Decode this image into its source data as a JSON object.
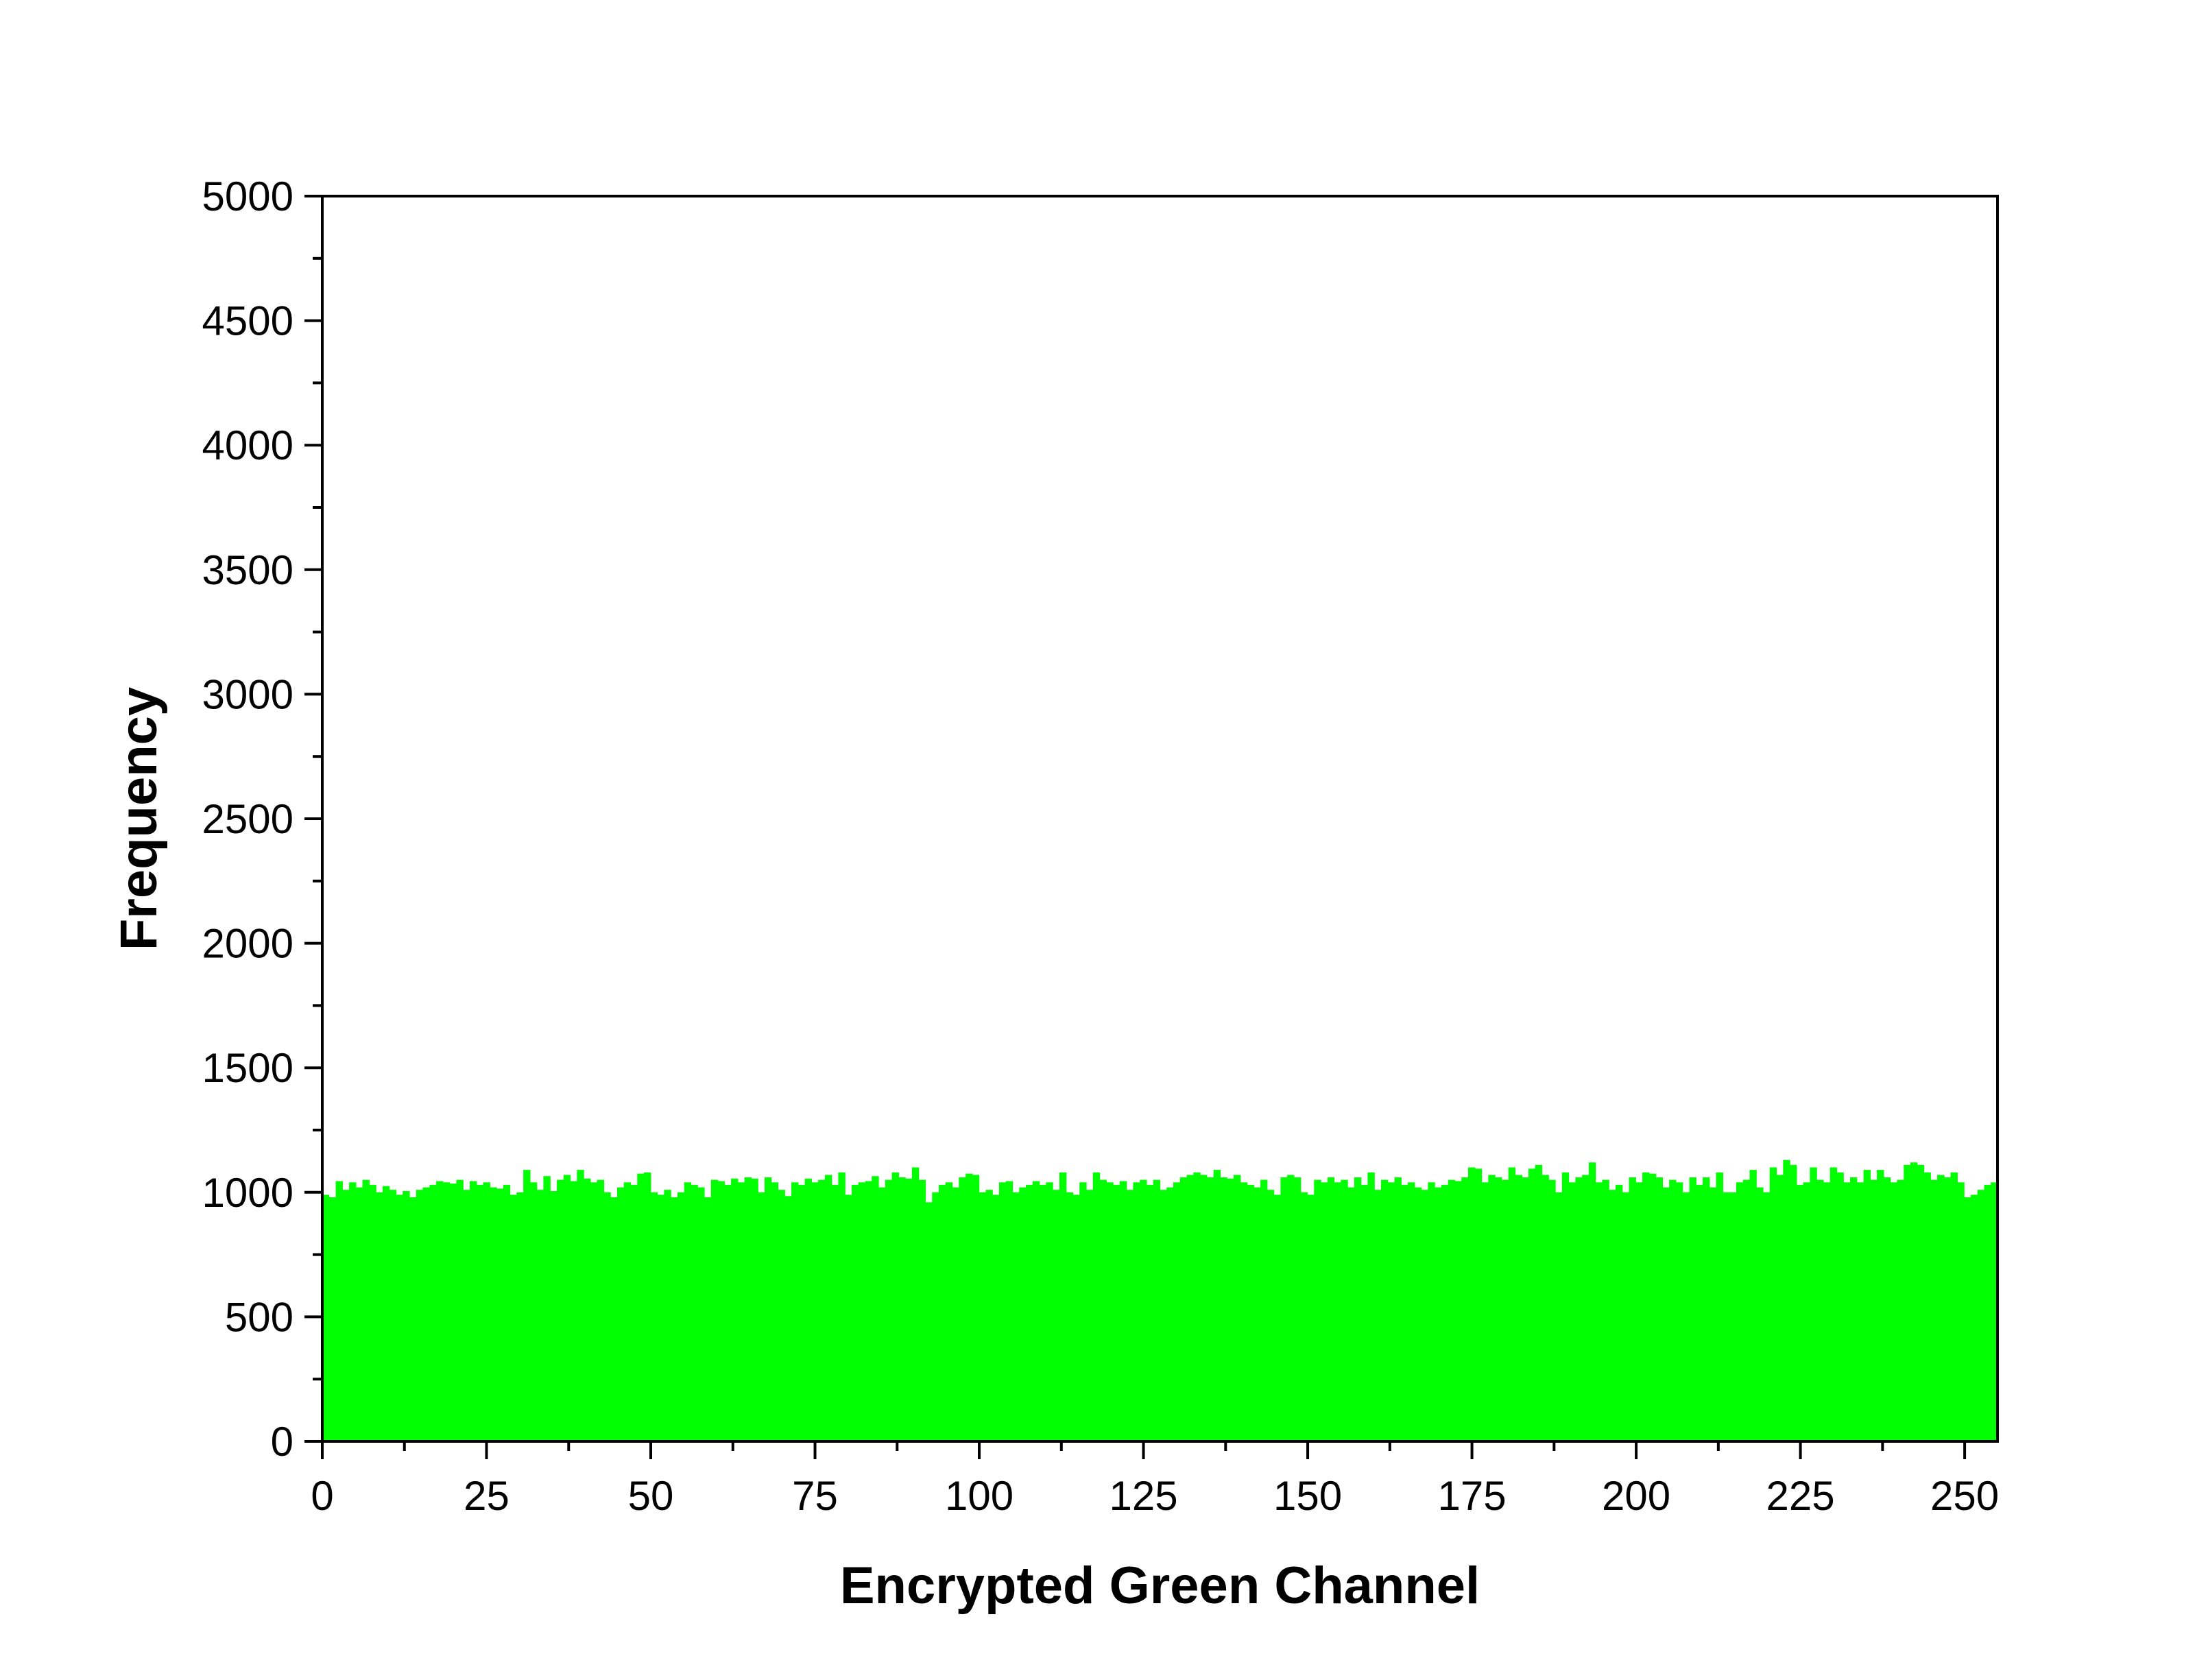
{
  "chart_data": {
    "type": "bar",
    "title": "",
    "xlabel": "Encrypted Green Channel",
    "ylabel": "Frequency",
    "xlim": [
      0,
      255
    ],
    "ylim": [
      0,
      5000
    ],
    "x_ticks": [
      "0",
      "25",
      "50",
      "75",
      "100",
      "125",
      "150",
      "175",
      "200",
      "225",
      "250"
    ],
    "y_ticks": [
      "0",
      "500",
      "1000",
      "1500",
      "2000",
      "2500",
      "3000",
      "3500",
      "4000",
      "4500",
      "5000"
    ],
    "grid": false,
    "legend": "none",
    "bar_color": "#00ff00",
    "series": [
      {
        "values": [
          990,
          980,
          1045,
          1010,
          1040,
          1020,
          1050,
          1030,
          1000,
          1025,
          1010,
          990,
          1005,
          980,
          1010,
          1020,
          1030,
          1045,
          1040,
          1035,
          1050,
          1010,
          1045,
          1030,
          1040,
          1020,
          1015,
          1030,
          990,
          1000,
          1090,
          1040,
          1010,
          1065,
          1005,
          1050,
          1070,
          1045,
          1090,
          1055,
          1040,
          1050,
          1000,
          980,
          1020,
          1040,
          1030,
          1075,
          1080,
          1000,
          990,
          1010,
          980,
          1000,
          1040,
          1030,
          1020,
          980,
          1050,
          1045,
          1030,
          1055,
          1040,
          1060,
          1055,
          1000,
          1060,
          1040,
          1010,
          985,
          1040,
          1030,
          1055,
          1040,
          1050,
          1070,
          1030,
          1080,
          990,
          1030,
          1040,
          1045,
          1065,
          1020,
          1050,
          1080,
          1060,
          1055,
          1100,
          1050,
          960,
          1000,
          1030,
          1040,
          1020,
          1060,
          1075,
          1070,
          1000,
          1010,
          990,
          1040,
          1045,
          1000,
          1020,
          1030,
          1045,
          1030,
          1040,
          1010,
          1080,
          1000,
          990,
          1040,
          1010,
          1080,
          1050,
          1040,
          1030,
          1045,
          1010,
          1040,
          1050,
          1030,
          1050,
          1010,
          1020,
          1040,
          1060,
          1070,
          1080,
          1070,
          1060,
          1090,
          1060,
          1055,
          1070,
          1040,
          1030,
          1020,
          1050,
          1010,
          990,
          1060,
          1070,
          1060,
          1000,
          990,
          1050,
          1040,
          1060,
          1040,
          1050,
          1020,
          1060,
          1030,
          1080,
          1010,
          1050,
          1040,
          1060,
          1030,
          1040,
          1020,
          1010,
          1040,
          1020,
          1030,
          1050,
          1045,
          1060,
          1100,
          1095,
          1040,
          1070,
          1060,
          1050,
          1100,
          1070,
          1060,
          1095,
          1110,
          1070,
          1050,
          1000,
          1080,
          1040,
          1060,
          1070,
          1120,
          1040,
          1050,
          1010,
          1030,
          1000,
          1060,
          1040,
          1080,
          1075,
          1060,
          1020,
          1050,
          1040,
          1000,
          1060,
          1030,
          1060,
          1020,
          1080,
          1000,
          1000,
          1040,
          1050,
          1090,
          1020,
          1000,
          1100,
          1070,
          1130,
          1110,
          1030,
          1040,
          1100,
          1050,
          1040,
          1100,
          1080,
          1040,
          1060,
          1040,
          1090,
          1050,
          1090,
          1060,
          1040,
          1050,
          1110,
          1120,
          1110,
          1080,
          1050,
          1070,
          1060,
          1080,
          1040,
          980,
          990,
          1010,
          1030,
          1040
        ]
      }
    ]
  }
}
